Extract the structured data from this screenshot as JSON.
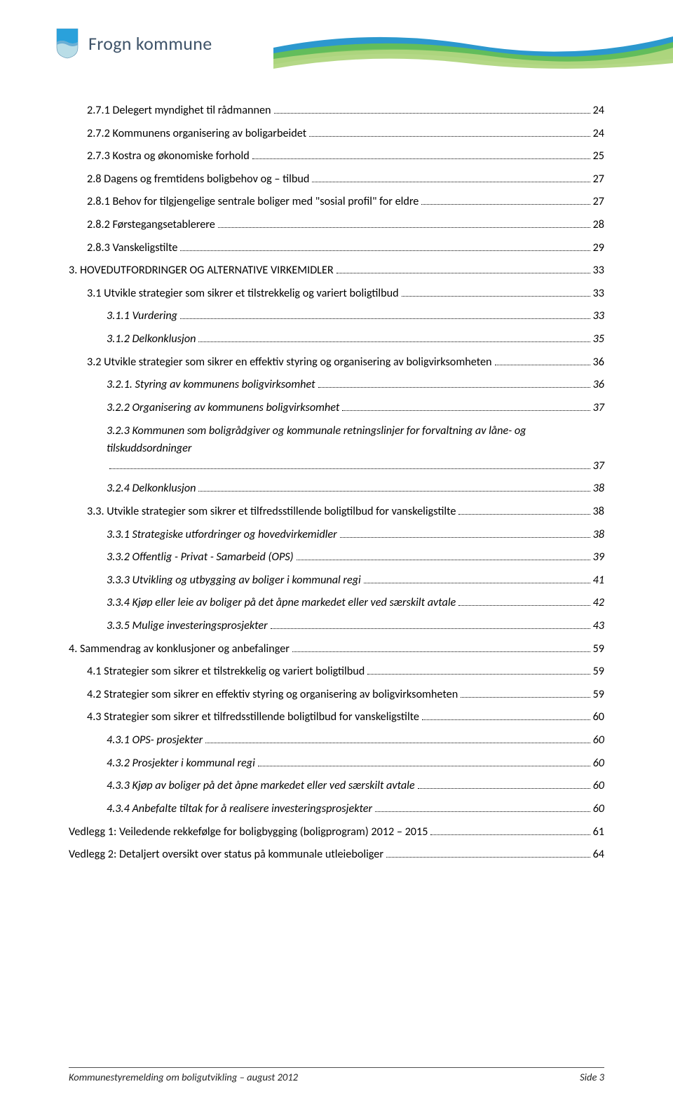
{
  "header": {
    "org_name": "Frogn kommune",
    "logo_shield_colors": {
      "top": "#2aa1db",
      "bottom": "#b9dde7",
      "divider": "#6aaed4"
    },
    "wave_colors": {
      "back": "#1a8fca",
      "mid": "#67c051",
      "front": "#b0d680"
    }
  },
  "toc": [
    {
      "level": 2,
      "italic": false,
      "text": "2.7.1 Delegert myndighet til rådmannen",
      "page": "24"
    },
    {
      "level": 2,
      "italic": false,
      "text": "2.7.2 Kommunens organisering av boligarbeidet",
      "page": "24"
    },
    {
      "level": 2,
      "italic": false,
      "text": "2.7.3 Kostra og økonomiske forhold",
      "page": "25"
    },
    {
      "level": 2,
      "italic": false,
      "text": "2.8 Dagens og fremtidens boligbehov og – tilbud",
      "page": "27"
    },
    {
      "level": 2,
      "italic": false,
      "text": "2.8.1 Behov for tilgjengelige sentrale boliger med \"sosial profil\" for eldre",
      "page": "27"
    },
    {
      "level": 2,
      "italic": false,
      "text": "2.8.2 Førstegangsetablerere",
      "page": "28"
    },
    {
      "level": 2,
      "italic": false,
      "text": "2.8.3 Vanskeligstilte",
      "page": "29"
    },
    {
      "level": 1,
      "italic": false,
      "text": "3. HOVEDUTFORDRINGER  OG ALTERNATIVE VIRKEMIDLER",
      "page": "33"
    },
    {
      "level": 2,
      "italic": false,
      "text": "3.1 Utvikle strategier som sikrer et tilstrekkelig og variert boligtilbud",
      "page": "33"
    },
    {
      "level": 3,
      "italic": true,
      "text": "3.1.1 Vurdering",
      "page": "33"
    },
    {
      "level": 3,
      "italic": true,
      "text": "3.1.2 Delkonklusjon",
      "page": "35"
    },
    {
      "level": 2,
      "italic": false,
      "text": "3.2 Utvikle strategier som sikrer en effektiv styring og organisering av boligvirksomheten",
      "page": "36"
    },
    {
      "level": 3,
      "italic": true,
      "text": "3.2.1. Styring av kommunens boligvirksomhet",
      "page": "36"
    },
    {
      "level": 3,
      "italic": true,
      "text": "3.2.2 Organisering av kommunens boligvirksomhet",
      "page": "37"
    },
    {
      "level": 3,
      "italic": true,
      "text": "3.2.3 Kommunen som boligrådgiver og kommunale retningslinjer for forvaltning av låne- og tilskuddsordninger",
      "page": "37",
      "wrap": true
    },
    {
      "level": 3,
      "italic": true,
      "text": "3.2.4 Delkonklusjon",
      "page": "38"
    },
    {
      "level": 2,
      "italic": false,
      "text": "3.3. Utvikle strategier som sikrer et tilfredsstillende boligtilbud for vanskeligstilte",
      "page": "38"
    },
    {
      "level": 3,
      "italic": true,
      "text": "3.3.1 Strategiske utfordringer og hovedvirkemidler",
      "page": "38"
    },
    {
      "level": 3,
      "italic": true,
      "text": "3.3.2 Offentlig - Privat - Samarbeid (OPS)",
      "page": "39"
    },
    {
      "level": 3,
      "italic": true,
      "text": "3.3.3 Utvikling og utbygging av boliger i kommunal regi",
      "page": "41"
    },
    {
      "level": 3,
      "italic": true,
      "text": "3.3.4 Kjøp eller leie av boliger på det åpne markedet eller ved særskilt avtale",
      "page": "42"
    },
    {
      "level": 3,
      "italic": true,
      "text": "3.3.5 Mulige investeringsprosjekter",
      "page": "43"
    },
    {
      "level": 1,
      "italic": false,
      "text": "4.     Sammendrag av konklusjoner og anbefalinger",
      "page": "59"
    },
    {
      "level": 2,
      "italic": false,
      "text": "4.1 Strategier som sikrer et tilstrekkelig og variert boligtilbud",
      "page": "59"
    },
    {
      "level": 2,
      "italic": false,
      "text": "4.2 Strategier som sikrer en effektiv styring og organisering av boligvirksomheten",
      "page": "59"
    },
    {
      "level": 2,
      "italic": false,
      "text": "4.3 Strategier som sikrer et tilfredsstillende boligtilbud for vanskeligstilte",
      "page": "60"
    },
    {
      "level": 3,
      "italic": true,
      "text": "4.3.1 OPS- prosjekter",
      "page": "60"
    },
    {
      "level": 3,
      "italic": true,
      "text": "4.3.2 Prosjekter i kommunal regi",
      "page": "60"
    },
    {
      "level": 3,
      "italic": true,
      "text": "4.3.3 Kjøp av boliger på det åpne markedet eller ved særskilt avtale",
      "page": "60"
    },
    {
      "level": 3,
      "italic": true,
      "text": "4.3.4 Anbefalte tiltak for å realisere investeringsprosjekter",
      "page": "60"
    },
    {
      "level": 1,
      "italic": false,
      "text": "Vedlegg 1: Veiledende rekkefølge for boligbygging (boligprogram) 2012 – 2015",
      "page": "61"
    },
    {
      "level": 1,
      "italic": false,
      "text": "Vedlegg 2: Detaljert oversikt over status på kommunale utleieboliger",
      "page": "64"
    }
  ],
  "footer": {
    "left": "Kommunestyremelding om boligutvikling – august 2012",
    "right": "Side 3"
  }
}
